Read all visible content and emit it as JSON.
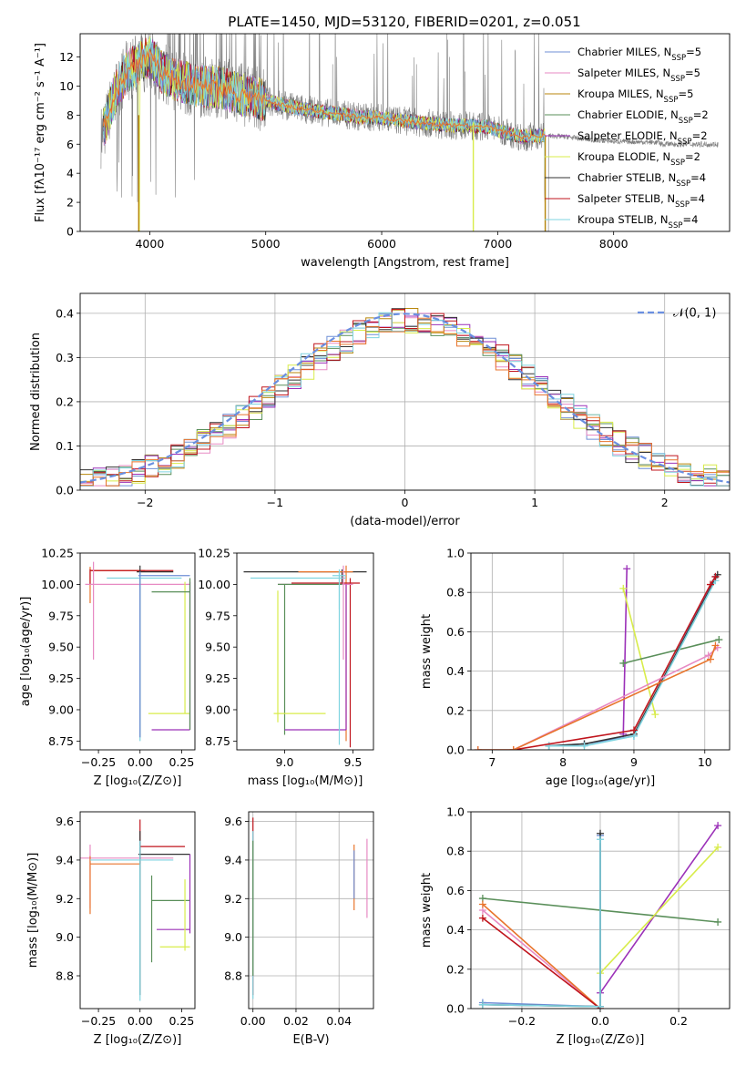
{
  "figure_title": "PLATE=1450, MJD=53120, FIBERID=0201, z=0.051",
  "colors": {
    "Chabrier MILES": "#6f8fd6",
    "Salpeter MILES": "#e78ac3",
    "Kroupa MILES": "#b8860b",
    "Chabrier ELODIE": "#5a8f5a",
    "Salpeter ELODIE": "#9b30b8",
    "Kroupa ELODIE": "#d8ec4a",
    "Chabrier STELIB": "#333333",
    "Salpeter STELIB": "#c0141c",
    "Kroupa STELIB": "#7fd4e0",
    "orange": "#e8742c",
    "data": "#808080",
    "normal": "#6a8fe0"
  },
  "chart_data": [
    {
      "id": "spectrum",
      "type": "line",
      "title": "PLATE=1450, MJD=53120, FIBERID=0201, z=0.051",
      "xlabel": "wavelength [Angstrom, rest frame]",
      "ylabel": "Flux [fλ10⁻¹⁷ erg cm⁻² s⁻¹ A⁻¹]",
      "xlim": [
        3400,
        9000
      ],
      "ylim": [
        0,
        13.6
      ],
      "xticks": [
        "4000",
        "5000",
        "6000",
        "7000",
        "8000"
      ],
      "yticks": [
        "0",
        "2",
        "4",
        "6",
        "8",
        "10",
        "12"
      ],
      "grid": false,
      "legend_position": "top-right",
      "legend": [
        {
          "name": "Chabrier MILES",
          "nssp": "5"
        },
        {
          "name": "Salpeter MILES",
          "nssp": "5"
        },
        {
          "name": "Kroupa MILES",
          "nssp": "5"
        },
        {
          "name": "Chabrier ELODIE",
          "nssp": "2"
        },
        {
          "name": "Salpeter ELODIE",
          "nssp": "2"
        },
        {
          "name": "Kroupa ELODIE",
          "nssp": "2"
        },
        {
          "name": "Chabrier STELIB",
          "nssp": "4"
        },
        {
          "name": "Salpeter STELIB",
          "nssp": "4"
        },
        {
          "name": "Kroupa STELIB",
          "nssp": "4"
        }
      ],
      "continuum_anchors": [
        [
          3600,
          7.0
        ],
        [
          3700,
          9.5
        ],
        [
          3800,
          11.0
        ],
        [
          3900,
          11.5
        ],
        [
          4000,
          12.0
        ],
        [
          4100,
          11.0
        ],
        [
          4200,
          10.5
        ],
        [
          4400,
          10.0
        ],
        [
          4600,
          9.9
        ],
        [
          4800,
          9.4
        ],
        [
          5000,
          9.0
        ],
        [
          5200,
          8.6
        ],
        [
          5500,
          8.2
        ],
        [
          5800,
          7.9
        ],
        [
          6000,
          7.8
        ],
        [
          6300,
          7.5
        ],
        [
          6600,
          7.3
        ],
        [
          6900,
          7.2
        ],
        [
          7200,
          6.5
        ],
        [
          7400,
          6.6
        ],
        [
          7600,
          6.5
        ],
        [
          7800,
          6.3
        ],
        [
          8000,
          6.2
        ],
        [
          8500,
          6.1
        ],
        [
          9000,
          6.0
        ]
      ]
    },
    {
      "id": "residuals",
      "type": "step",
      "xlabel": "(data-model)/error",
      "ylabel": "Normed distribution",
      "xlim": [
        -2.5,
        2.5
      ],
      "ylim": [
        0,
        0.445
      ],
      "xticks": [
        "−2",
        "−1",
        "0",
        "1",
        "2"
      ],
      "yticks": [
        "0.0",
        "0.1",
        "0.2",
        "0.3",
        "0.4"
      ],
      "grid": true,
      "legend_position": "top-right",
      "normal_label": "𝒩(0, 1)",
      "bin_width": 0.1
    },
    {
      "id": "age_vs_Z",
      "type": "errorbar",
      "xlabel": "Z [log₁₀(Z/Z⊙)]",
      "ylabel": "age  [log₁₀(age/yr)]",
      "xlim": [
        -0.36,
        0.33
      ],
      "ylim": [
        8.68,
        10.25
      ],
      "xticks": [
        "−0.25",
        "0.00",
        "0.25"
      ],
      "yticks": [
        "8.75",
        "9.00",
        "9.25",
        "9.50",
        "9.75",
        "10.00",
        "10.25"
      ],
      "grid": false
    },
    {
      "id": "age_vs_mass",
      "type": "errorbar",
      "xlabel": "mass [log₁₀(M/M⊙)]",
      "ylabel": "",
      "xlim": [
        8.65,
        9.65
      ],
      "ylim": [
        8.68,
        10.25
      ],
      "xticks": [
        "9.0",
        "9.5"
      ],
      "yticks": [
        "8.75",
        "9.00",
        "9.25",
        "9.50",
        "9.75",
        "10.00",
        "10.25"
      ],
      "grid": false
    },
    {
      "id": "weight_vs_age",
      "type": "line",
      "xlabel": "age  [log₁₀(age/yr)]",
      "ylabel": "mass weight",
      "xlim": [
        6.7,
        10.35
      ],
      "ylim": [
        0,
        1.0
      ],
      "xticks": [
        "7",
        "8",
        "9",
        "10"
      ],
      "yticks": [
        "0.0",
        "0.2",
        "0.4",
        "0.6",
        "0.8",
        "1.0"
      ],
      "grid": true,
      "series": [
        {
          "model": "Salpeter ELODIE",
          "x": [
            8.85,
            8.9
          ],
          "y": [
            0.08,
            0.92
          ]
        },
        {
          "model": "Kroupa ELODIE",
          "x": [
            8.85,
            9.3
          ],
          "y": [
            0.82,
            0.18
          ]
        },
        {
          "model": "Chabrier ELODIE",
          "x": [
            8.85,
            10.2
          ],
          "y": [
            0.44,
            0.56
          ]
        },
        {
          "model": "Chabrier MILES",
          "x": [
            7.8,
            8.3,
            9.0,
            10.15
          ],
          "y": [
            0.02,
            0.03,
            0.07,
            0.88
          ]
        },
        {
          "model": "Chabrier STELIB",
          "x": [
            7.8,
            8.3,
            9.0,
            10.18
          ],
          "y": [
            0.02,
            0.03,
            0.08,
            0.89
          ]
        },
        {
          "model": "Kroupa STELIB",
          "x": [
            7.8,
            8.3,
            9.0,
            10.15
          ],
          "y": [
            0.02,
            0.02,
            0.07,
            0.86
          ]
        },
        {
          "model": "Salpeter STELIB",
          "x": [
            7.3,
            9.0,
            10.08,
            10.15
          ],
          "y": [
            0.0,
            0.1,
            0.84,
            0.88
          ]
        },
        {
          "model": "Salpeter MILES",
          "x": [
            6.8,
            7.3,
            10.05,
            10.18
          ],
          "y": [
            0.0,
            0.0,
            0.48,
            0.52
          ]
        },
        {
          "model": "orange",
          "x": [
            6.8,
            7.3,
            10.08,
            10.15
          ],
          "y": [
            0.0,
            0.0,
            0.46,
            0.53
          ]
        }
      ]
    },
    {
      "id": "mass_vs_Z",
      "type": "errorbar",
      "xlabel": "Z [log₁₀(Z/Z⊙)]",
      "ylabel": "mass [log₁₀(M/M⊙)]",
      "xlim": [
        -0.36,
        0.33
      ],
      "ylim": [
        8.63,
        9.65
      ],
      "xticks": [
        "−0.25",
        "0.00",
        "0.25"
      ],
      "yticks": [
        "8.8",
        "9.0",
        "9.2",
        "9.4",
        "9.6"
      ],
      "grid": false
    },
    {
      "id": "mass_vs_ebv",
      "type": "errorbar",
      "xlabel": "E(B-V)",
      "ylabel": "",
      "xlim": [
        -0.002,
        0.056
      ],
      "ylim": [
        8.63,
        9.65
      ],
      "xticks": [
        "0.00",
        "0.02",
        "0.04"
      ],
      "yticks": [
        "8.8",
        "9.0",
        "9.2",
        "9.4",
        "9.6"
      ],
      "grid": true
    },
    {
      "id": "weight_vs_Z",
      "type": "line",
      "xlabel": "Z [log₁₀(Z/Z⊙)]",
      "ylabel": "mass weight",
      "xlim": [
        -0.33,
        0.33
      ],
      "ylim": [
        0,
        1.0
      ],
      "xticks": [
        "−0.2",
        "0.0",
        "0.2"
      ],
      "yticks": [
        "0.0",
        "0.2",
        "0.4",
        "0.6",
        "0.8",
        "1.0"
      ],
      "grid": true,
      "series": [
        {
          "model": "Chabrier ELODIE",
          "x": [
            -0.3,
            0.3
          ],
          "y": [
            0.56,
            0.44
          ]
        },
        {
          "model": "Salpeter ELODIE",
          "x": [
            0.0,
            0.3
          ],
          "y": [
            0.08,
            0.93
          ]
        },
        {
          "model": "Kroupa ELODIE",
          "x": [
            0.0,
            0.3
          ],
          "y": [
            0.18,
            0.82
          ]
        },
        {
          "model": "Salpeter MILES",
          "x": [
            -0.3,
            0.0
          ],
          "y": [
            0.5,
            0.0
          ]
        },
        {
          "model": "orange",
          "x": [
            -0.3,
            0.0
          ],
          "y": [
            0.53,
            0.0
          ]
        },
        {
          "model": "Salpeter STELIB",
          "x": [
            -0.3,
            0.0
          ],
          "y": [
            0.46,
            0.0
          ]
        },
        {
          "model": "Chabrier MILES",
          "x": [
            -0.3,
            0.0,
            0.0
          ],
          "y": [
            0.03,
            0.01,
            0.88
          ]
        },
        {
          "model": "Chabrier STELIB",
          "x": [
            -0.3,
            0.0,
            0.0
          ],
          "y": [
            0.02,
            0.01,
            0.89
          ]
        },
        {
          "model": "Kroupa STELIB",
          "x": [
            -0.3,
            0.0,
            0.0
          ],
          "y": [
            0.02,
            0.01,
            0.86
          ]
        }
      ]
    }
  ]
}
